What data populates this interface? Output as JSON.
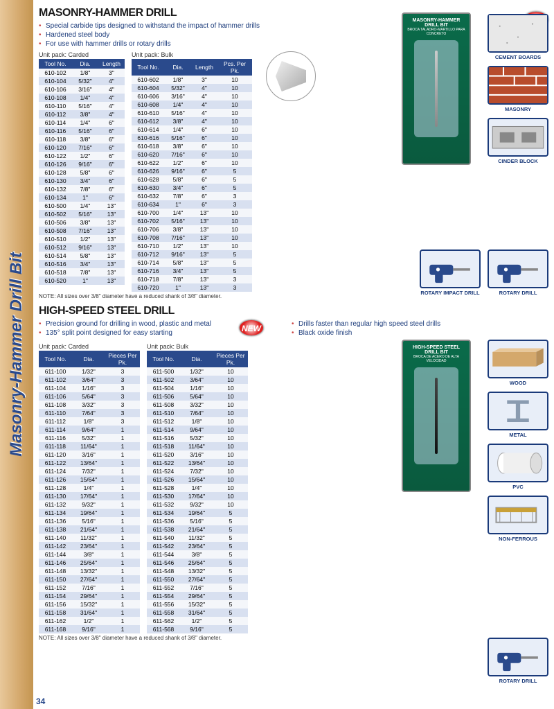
{
  "sidebar_text": "Masonry-Hammer Drill Bit",
  "page_number": "34",
  "masonry": {
    "title": "MASONRY-HAMMER DRILL",
    "bullets": [
      "Special carbide tips designed to withstand the impact of hammer drills",
      "Hardened steel body",
      "For use with hammer drills or rotary drills"
    ],
    "pack_carded_label": "Unit pack: Carded",
    "pack_bulk_label": "Unit pack: Bulk",
    "carded_cols": [
      "Tool No.",
      "Dia.",
      "Length"
    ],
    "carded_rows": [
      [
        "610-102",
        "1/8\"",
        "3\""
      ],
      [
        "610-104",
        "5/32\"",
        "4\""
      ],
      [
        "610-106",
        "3/16\"",
        "4\""
      ],
      [
        "610-108",
        "1/4\"",
        "4\""
      ],
      [
        "610-110",
        "5/16\"",
        "4\""
      ],
      [
        "610-112",
        "3/8\"",
        "4\""
      ],
      [
        "610-114",
        "1/4\"",
        "6\""
      ],
      [
        "610-116",
        "5/16\"",
        "6\""
      ],
      [
        "610-118",
        "3/8\"",
        "6\""
      ],
      [
        "610-120",
        "7/16\"",
        "6\""
      ],
      [
        "610-122",
        "1/2\"",
        "6\""
      ],
      [
        "610-126",
        "9/16\"",
        "6\""
      ],
      [
        "610-128",
        "5/8\"",
        "6\""
      ],
      [
        "610-130",
        "3/4\"",
        "6\""
      ],
      [
        "610-132",
        "7/8\"",
        "6\""
      ],
      [
        "610-134",
        "1\"",
        "6\""
      ],
      [
        "610-500",
        "1/4\"",
        "13\""
      ],
      [
        "610-502",
        "5/16\"",
        "13\""
      ],
      [
        "610-506",
        "3/8\"",
        "13\""
      ],
      [
        "610-508",
        "7/16\"",
        "13\""
      ],
      [
        "610-510",
        "1/2\"",
        "13\""
      ],
      [
        "610-512",
        "9/16\"",
        "13\""
      ],
      [
        "610-514",
        "5/8\"",
        "13\""
      ],
      [
        "610-516",
        "3/4\"",
        "13\""
      ],
      [
        "610-518",
        "7/8\"",
        "13\""
      ],
      [
        "610-520",
        "1\"",
        "13\""
      ]
    ],
    "bulk_cols": [
      "Tool No.",
      "Dia.",
      "Length",
      "Pcs. Per Pk."
    ],
    "bulk_rows": [
      [
        "610-602",
        "1/8\"",
        "3\"",
        "10"
      ],
      [
        "610-604",
        "5/32\"",
        "4\"",
        "10"
      ],
      [
        "610-606",
        "3/16\"",
        "4\"",
        "10"
      ],
      [
        "610-608",
        "1/4\"",
        "4\"",
        "10"
      ],
      [
        "610-610",
        "5/16\"",
        "4\"",
        "10"
      ],
      [
        "610-612",
        "3/8\"",
        "4\"",
        "10"
      ],
      [
        "610-614",
        "1/4\"",
        "6\"",
        "10"
      ],
      [
        "610-616",
        "5/16\"",
        "6\"",
        "10"
      ],
      [
        "610-618",
        "3/8\"",
        "6\"",
        "10"
      ],
      [
        "610-620",
        "7/16\"",
        "6\"",
        "10"
      ],
      [
        "610-622",
        "1/2\"",
        "6\"",
        "10"
      ],
      [
        "610-626",
        "9/16\"",
        "6\"",
        "5"
      ],
      [
        "610-628",
        "5/8\"",
        "6\"",
        "5"
      ],
      [
        "610-630",
        "3/4\"",
        "6\"",
        "5"
      ],
      [
        "610-632",
        "7/8\"",
        "6\"",
        "3"
      ],
      [
        "610-634",
        "1\"",
        "6\"",
        "3"
      ],
      [
        "610-700",
        "1/4\"",
        "13\"",
        "10"
      ],
      [
        "610-702",
        "5/16\"",
        "13\"",
        "10"
      ],
      [
        "610-706",
        "3/8\"",
        "13\"",
        "10"
      ],
      [
        "610-708",
        "7/16\"",
        "13\"",
        "10"
      ],
      [
        "610-710",
        "1/2\"",
        "13\"",
        "10"
      ],
      [
        "610-712",
        "9/16\"",
        "13\"",
        "5"
      ],
      [
        "610-714",
        "5/8\"",
        "13\"",
        "5"
      ],
      [
        "610-716",
        "3/4\"",
        "13\"",
        "5"
      ],
      [
        "610-718",
        "7/8\"",
        "13\"",
        "3"
      ],
      [
        "610-720",
        "1\"",
        "13\"",
        "3"
      ]
    ],
    "note": "NOTE: All sizes over 3/8\" diameter have a reduced shank of 3/8\" diameter.",
    "materials": [
      "CEMENT BOARDS",
      "MASONRY",
      "CINDER BLOCK"
    ],
    "drills": [
      "ROTARY IMPACT DRILL",
      "ROTARY DRILL"
    ],
    "card_title": "MASONRY-HAMMER DRILL BIT",
    "card_sub": "BROCA TALADRO-MARTILLO PARA CONCRETO"
  },
  "hss": {
    "title": "HIGH-SPEED STEEL DRILL",
    "bullets_left": [
      "Precision ground for drilling in wood, plastic and metal",
      "135° split point designed for easy starting"
    ],
    "bullets_right": [
      "Drills faster than regular high speed steel drills",
      "Black oxide finish"
    ],
    "pack_carded_label": "Unit pack: Carded",
    "pack_bulk_label": "Unit pack: Bulk",
    "carded_cols": [
      "Tool No.",
      "Dia.",
      "Pieces Per Pk."
    ],
    "carded_rows": [
      [
        "611-100",
        "1/32\"",
        "3"
      ],
      [
        "611-102",
        "3/64\"",
        "3"
      ],
      [
        "611-104",
        "1/16\"",
        "3"
      ],
      [
        "611-106",
        "5/64\"",
        "3"
      ],
      [
        "611-108",
        "3/32\"",
        "3"
      ],
      [
        "611-110",
        "7/64\"",
        "3"
      ],
      [
        "611-112",
        "1/8\"",
        "3"
      ],
      [
        "611-114",
        "9/64\"",
        "1"
      ],
      [
        "611-116",
        "5/32\"",
        "1"
      ],
      [
        "611-118",
        "11/64\"",
        "1"
      ],
      [
        "611-120",
        "3/16\"",
        "1"
      ],
      [
        "611-122",
        "13/64\"",
        "1"
      ],
      [
        "611-124",
        "7/32\"",
        "1"
      ],
      [
        "611-126",
        "15/64\"",
        "1"
      ],
      [
        "611-128",
        "1/4\"",
        "1"
      ],
      [
        "611-130",
        "17/64\"",
        "1"
      ],
      [
        "611-132",
        "9/32\"",
        "1"
      ],
      [
        "611-134",
        "19/64\"",
        "1"
      ],
      [
        "611-136",
        "5/16\"",
        "1"
      ],
      [
        "611-138",
        "21/64\"",
        "1"
      ],
      [
        "611-140",
        "11/32\"",
        "1"
      ],
      [
        "611-142",
        "23/64\"",
        "1"
      ],
      [
        "611-144",
        "3/8\"",
        "1"
      ],
      [
        "611-146",
        "25/64\"",
        "1"
      ],
      [
        "611-148",
        "13/32\"",
        "1"
      ],
      [
        "611-150",
        "27/64\"",
        "1"
      ],
      [
        "611-152",
        "7/16\"",
        "1"
      ],
      [
        "611-154",
        "29/64\"",
        "1"
      ],
      [
        "611-156",
        "15/32\"",
        "1"
      ],
      [
        "611-158",
        "31/64\"",
        "1"
      ],
      [
        "611-162",
        "1/2\"",
        "1"
      ],
      [
        "611-168",
        "9/16\"",
        "1"
      ]
    ],
    "bulk_cols": [
      "Tool No.",
      "Dia.",
      "Pieces Per Pk."
    ],
    "bulk_rows": [
      [
        "611-500",
        "1/32\"",
        "10"
      ],
      [
        "611-502",
        "3/64\"",
        "10"
      ],
      [
        "611-504",
        "1/16\"",
        "10"
      ],
      [
        "611-506",
        "5/64\"",
        "10"
      ],
      [
        "611-508",
        "3/32\"",
        "10"
      ],
      [
        "611-510",
        "7/64\"",
        "10"
      ],
      [
        "611-512",
        "1/8\"",
        "10"
      ],
      [
        "611-514",
        "9/64\"",
        "10"
      ],
      [
        "611-516",
        "5/32\"",
        "10"
      ],
      [
        "611-518",
        "11/64\"",
        "10"
      ],
      [
        "611-520",
        "3/16\"",
        "10"
      ],
      [
        "611-522",
        "13/64\"",
        "10"
      ],
      [
        "611-524",
        "7/32\"",
        "10"
      ],
      [
        "611-526",
        "15/64\"",
        "10"
      ],
      [
        "611-528",
        "1/4\"",
        "10"
      ],
      [
        "611-530",
        "17/64\"",
        "10"
      ],
      [
        "611-532",
        "9/32\"",
        "10"
      ],
      [
        "611-534",
        "19/64\"",
        "5"
      ],
      [
        "611-536",
        "5/16\"",
        "5"
      ],
      [
        "611-538",
        "21/64\"",
        "5"
      ],
      [
        "611-540",
        "11/32\"",
        "5"
      ],
      [
        "611-542",
        "23/64\"",
        "5"
      ],
      [
        "611-544",
        "3/8\"",
        "5"
      ],
      [
        "611-546",
        "25/64\"",
        "5"
      ],
      [
        "611-548",
        "13/32\"",
        "5"
      ],
      [
        "611-550",
        "27/64\"",
        "5"
      ],
      [
        "611-552",
        "7/16\"",
        "5"
      ],
      [
        "611-554",
        "29/64\"",
        "5"
      ],
      [
        "611-556",
        "15/32\"",
        "5"
      ],
      [
        "611-558",
        "31/64\"",
        "5"
      ],
      [
        "611-562",
        "1/2\"",
        "5"
      ],
      [
        "611-568",
        "9/16\"",
        "5"
      ]
    ],
    "note": "NOTE: All sizes over 3/8\" diameter have a reduced shank of 3/8\" diameter.",
    "materials": [
      "WOOD",
      "METAL",
      "PVC",
      "NON-FERROUS"
    ],
    "drills": [
      "ROTARY DRILL"
    ],
    "card_title": "HIGH-SPEED STEEL DRILL BIT",
    "card_sub": "BROCA DE ACERO DE ALTA VELOCIDAD"
  },
  "new_label": "NEW",
  "colors": {
    "header_bg": "#2a4a8c",
    "row_odd": "#d8e0f0",
    "row_even": "#f4f6fa",
    "accent": "#1a3a7a"
  }
}
